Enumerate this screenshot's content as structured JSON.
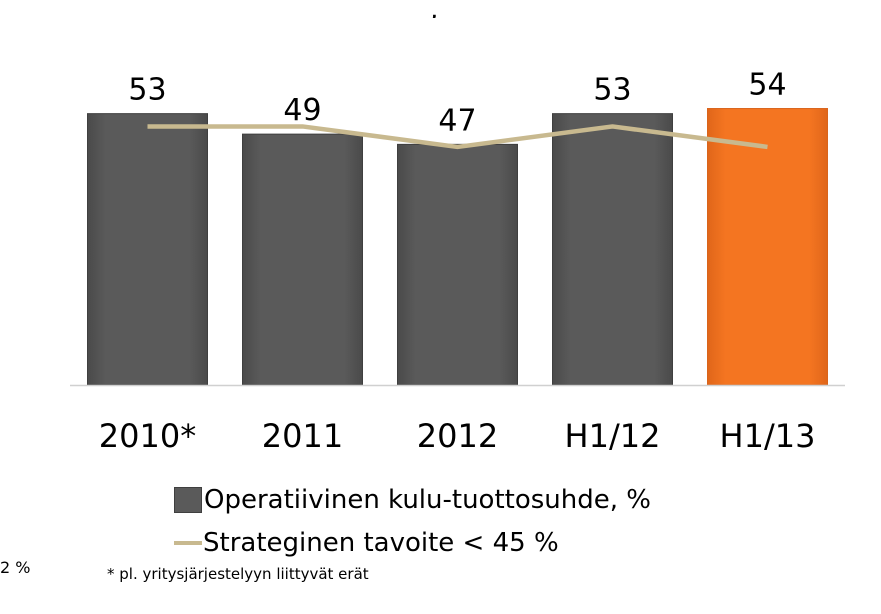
{
  "top_fragment": ",",
  "left_fragment": "2 %",
  "footnote": "* pl. yritysjärjestelyyn liittyvät erät",
  "legend": {
    "bar_label": "Operatiivinen kulu-tuottosuhde, %",
    "line_label": "Strateginen tavoite < 45 %"
  },
  "colors": {
    "bar": "#5a5a5a",
    "bar_highlight": "#f47521",
    "line": "#c8b98f"
  },
  "chart_data": {
    "type": "bar",
    "categories": [
      "2010*",
      "2011",
      "2012",
      "H1/12",
      "H1/13"
    ],
    "series": [
      {
        "name": "Operatiivinen kulu-tuottosuhde, %",
        "type": "bar",
        "values": [
          53,
          49,
          47,
          53,
          54
        ],
        "highlight_index": 4
      },
      {
        "name": "Strateginen tavoite < 45 %",
        "type": "line",
        "values": [
          50.5,
          50.5,
          46.5,
          50.5,
          46.5
        ]
      }
    ],
    "data_labels": [
      "53",
      "49",
      "47",
      "53",
      "54"
    ],
    "ylim": [
      0,
      55
    ],
    "grid": false,
    "legend_position": "bottom"
  }
}
